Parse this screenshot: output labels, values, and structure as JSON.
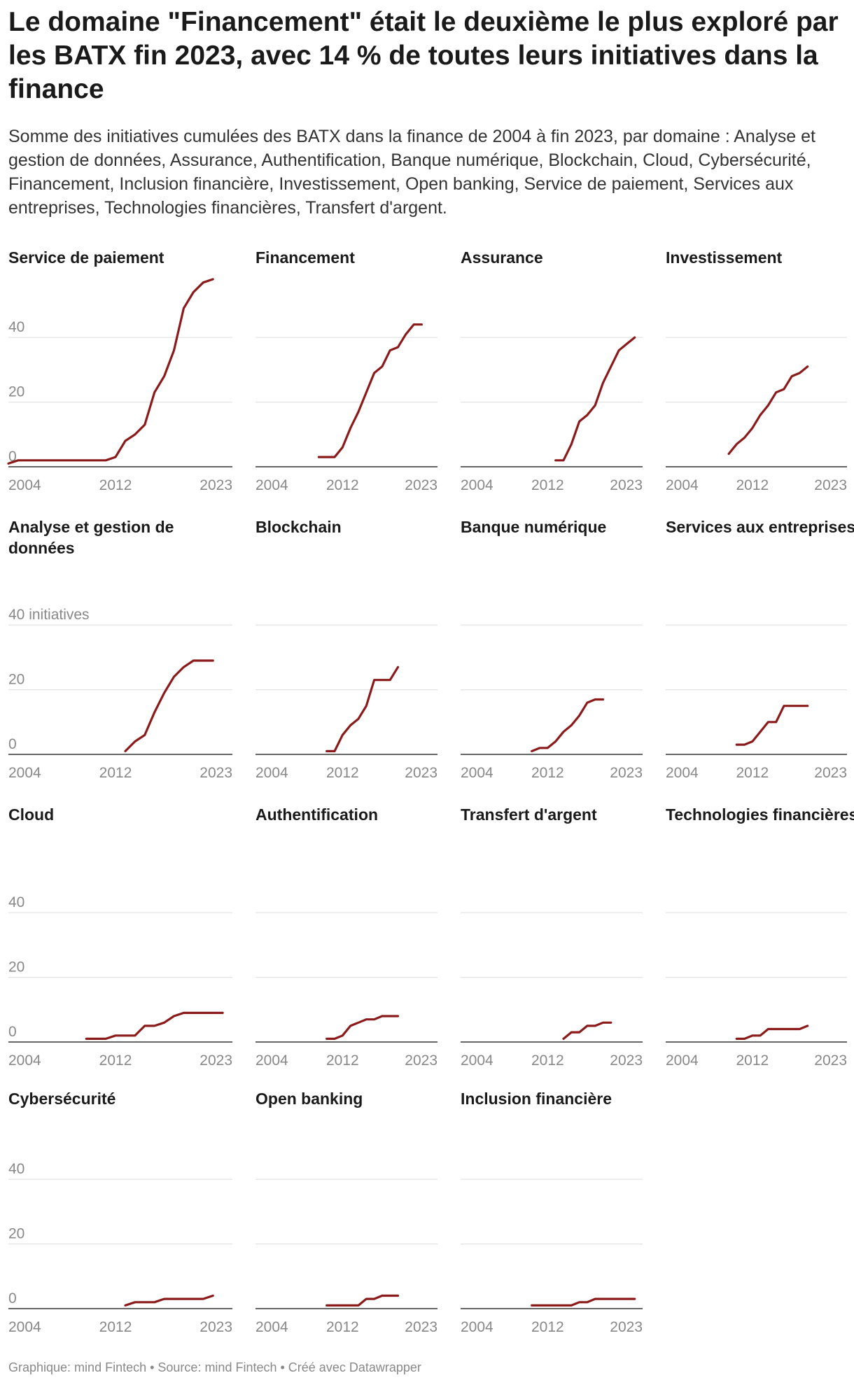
{
  "header": {
    "title": "Le domaine \"Financement\" était le deuxième le plus exploré par les BATX fin 2023, avec 14 % de toutes leurs initiatives dans la finance",
    "subtitle": "Somme des initiatives cumulées des BATX dans la finance de 2004 à fin 2023, par domaine : Analyse et gestion de données, Assurance, Authentification, Banque numérique, Blockchain, Cloud, Cybersécurité, Financement, Inclusion financière, Investissement, Open banking, Service de paiement, Services aux entreprises, Technologies financières, Transfert d'argent."
  },
  "footer": {
    "text": "Graphique: mind Fintech • Source: mind Fintech • Créé avec Datawrapper"
  },
  "colors": {
    "line": "#8b1a1a",
    "grid": "#e2e2e2",
    "baseline": "#333333",
    "tick": "#888888"
  },
  "chart_data": {
    "type": "line",
    "layout": "small-multiples",
    "x_range": [
      2001,
      2024
    ],
    "ylim": [
      0,
      58
    ],
    "x_ticks": [
      "2004",
      "2012",
      "2023"
    ],
    "y_ticks": [
      "0",
      "20",
      "40"
    ],
    "y_tick_top_label_row2": "40 initiatives",
    "series": [
      {
        "name": "Service de paiement",
        "points": [
          [
            2001,
            1
          ],
          [
            2002,
            2
          ],
          [
            2003,
            2
          ],
          [
            2004,
            2
          ],
          [
            2005,
            2
          ],
          [
            2006,
            2
          ],
          [
            2007,
            2
          ],
          [
            2008,
            2
          ],
          [
            2009,
            2
          ],
          [
            2010,
            2
          ],
          [
            2011,
            2
          ],
          [
            2012,
            3
          ],
          [
            2013,
            8
          ],
          [
            2014,
            10
          ],
          [
            2015,
            13
          ],
          [
            2016,
            23
          ],
          [
            2017,
            28
          ],
          [
            2018,
            36
          ],
          [
            2019,
            49
          ],
          [
            2020,
            54
          ],
          [
            2021,
            57
          ],
          [
            2022,
            58
          ]
        ]
      },
      {
        "name": "Financement",
        "points": [
          [
            2009,
            3
          ],
          [
            2010,
            3
          ],
          [
            2011,
            3
          ],
          [
            2012,
            6
          ],
          [
            2013,
            12
          ],
          [
            2014,
            17
          ],
          [
            2015,
            23
          ],
          [
            2016,
            29
          ],
          [
            2017,
            31
          ],
          [
            2018,
            36
          ],
          [
            2019,
            37
          ],
          [
            2020,
            41
          ],
          [
            2021,
            44
          ],
          [
            2022,
            44
          ]
        ]
      },
      {
        "name": "Assurance",
        "points": [
          [
            2013,
            2
          ],
          [
            2014,
            2
          ],
          [
            2015,
            7
          ],
          [
            2016,
            14
          ],
          [
            2017,
            16
          ],
          [
            2018,
            19
          ],
          [
            2019,
            26
          ],
          [
            2020,
            31
          ],
          [
            2021,
            36
          ],
          [
            2022,
            38
          ],
          [
            2023,
            40
          ]
        ]
      },
      {
        "name": "Investissement",
        "points": [
          [
            2009,
            4
          ],
          [
            2010,
            7
          ],
          [
            2011,
            9
          ],
          [
            2012,
            12
          ],
          [
            2013,
            16
          ],
          [
            2014,
            19
          ],
          [
            2015,
            23
          ],
          [
            2016,
            24
          ],
          [
            2017,
            28
          ],
          [
            2018,
            29
          ],
          [
            2019,
            31
          ]
        ]
      },
      {
        "name": "Analyse et gestion de données",
        "points": [
          [
            2013,
            1
          ],
          [
            2014,
            4
          ],
          [
            2015,
            6
          ],
          [
            2016,
            13
          ],
          [
            2017,
            19
          ],
          [
            2018,
            24
          ],
          [
            2019,
            27
          ],
          [
            2020,
            29
          ],
          [
            2021,
            29
          ],
          [
            2022,
            29
          ]
        ]
      },
      {
        "name": "Blockchain",
        "points": [
          [
            2010,
            1
          ],
          [
            2011,
            1
          ],
          [
            2012,
            6
          ],
          [
            2013,
            9
          ],
          [
            2014,
            11
          ],
          [
            2015,
            15
          ],
          [
            2016,
            23
          ],
          [
            2017,
            23
          ],
          [
            2018,
            23
          ],
          [
            2019,
            27
          ]
        ]
      },
      {
        "name": "Banque numérique",
        "points": [
          [
            2010,
            1
          ],
          [
            2011,
            2
          ],
          [
            2012,
            2
          ],
          [
            2013,
            4
          ],
          [
            2014,
            7
          ],
          [
            2015,
            9
          ],
          [
            2016,
            12
          ],
          [
            2017,
            16
          ],
          [
            2018,
            17
          ],
          [
            2019,
            17
          ]
        ]
      },
      {
        "name": "Services aux entreprises",
        "points": [
          [
            2010,
            3
          ],
          [
            2011,
            3
          ],
          [
            2012,
            4
          ],
          [
            2013,
            7
          ],
          [
            2014,
            10
          ],
          [
            2015,
            10
          ],
          [
            2016,
            15
          ],
          [
            2017,
            15
          ],
          [
            2018,
            15
          ],
          [
            2019,
            15
          ]
        ]
      },
      {
        "name": "Cloud",
        "points": [
          [
            2009,
            1
          ],
          [
            2010,
            1
          ],
          [
            2011,
            1
          ],
          [
            2012,
            2
          ],
          [
            2013,
            2
          ],
          [
            2014,
            2
          ],
          [
            2015,
            5
          ],
          [
            2016,
            5
          ],
          [
            2017,
            6
          ],
          [
            2018,
            8
          ],
          [
            2019,
            9
          ],
          [
            2020,
            9
          ],
          [
            2021,
            9
          ],
          [
            2022,
            9
          ],
          [
            2023,
            9
          ]
        ]
      },
      {
        "name": "Authentification",
        "points": [
          [
            2010,
            1
          ],
          [
            2011,
            1
          ],
          [
            2012,
            2
          ],
          [
            2013,
            5
          ],
          [
            2014,
            6
          ],
          [
            2015,
            7
          ],
          [
            2016,
            7
          ],
          [
            2017,
            8
          ],
          [
            2018,
            8
          ],
          [
            2019,
            8
          ]
        ]
      },
      {
        "name": "Transfert d'argent",
        "points": [
          [
            2014,
            1
          ],
          [
            2015,
            3
          ],
          [
            2016,
            3
          ],
          [
            2017,
            5
          ],
          [
            2018,
            5
          ],
          [
            2019,
            6
          ],
          [
            2020,
            6
          ]
        ]
      },
      {
        "name": "Technologies financières",
        "points": [
          [
            2010,
            1
          ],
          [
            2011,
            1
          ],
          [
            2012,
            2
          ],
          [
            2013,
            2
          ],
          [
            2014,
            4
          ],
          [
            2015,
            4
          ],
          [
            2016,
            4
          ],
          [
            2017,
            4
          ],
          [
            2018,
            4
          ],
          [
            2019,
            5
          ]
        ]
      },
      {
        "name": "Cybersécurité",
        "points": [
          [
            2013,
            1
          ],
          [
            2014,
            2
          ],
          [
            2015,
            2
          ],
          [
            2016,
            2
          ],
          [
            2017,
            3
          ],
          [
            2018,
            3
          ],
          [
            2019,
            3
          ],
          [
            2020,
            3
          ],
          [
            2021,
            3
          ],
          [
            2022,
            4
          ]
        ]
      },
      {
        "name": "Open banking",
        "points": [
          [
            2010,
            1
          ],
          [
            2011,
            1
          ],
          [
            2012,
            1
          ],
          [
            2013,
            1
          ],
          [
            2014,
            1
          ],
          [
            2015,
            3
          ],
          [
            2016,
            3
          ],
          [
            2017,
            4
          ],
          [
            2018,
            4
          ],
          [
            2019,
            4
          ]
        ]
      },
      {
        "name": "Inclusion financière",
        "points": [
          [
            2010,
            1
          ],
          [
            2011,
            1
          ],
          [
            2012,
            1
          ],
          [
            2013,
            1
          ],
          [
            2014,
            1
          ],
          [
            2015,
            1
          ],
          [
            2016,
            2
          ],
          [
            2017,
            2
          ],
          [
            2018,
            3
          ],
          [
            2019,
            3
          ],
          [
            2020,
            3
          ],
          [
            2021,
            3
          ],
          [
            2022,
            3
          ],
          [
            2023,
            3
          ]
        ]
      }
    ]
  }
}
